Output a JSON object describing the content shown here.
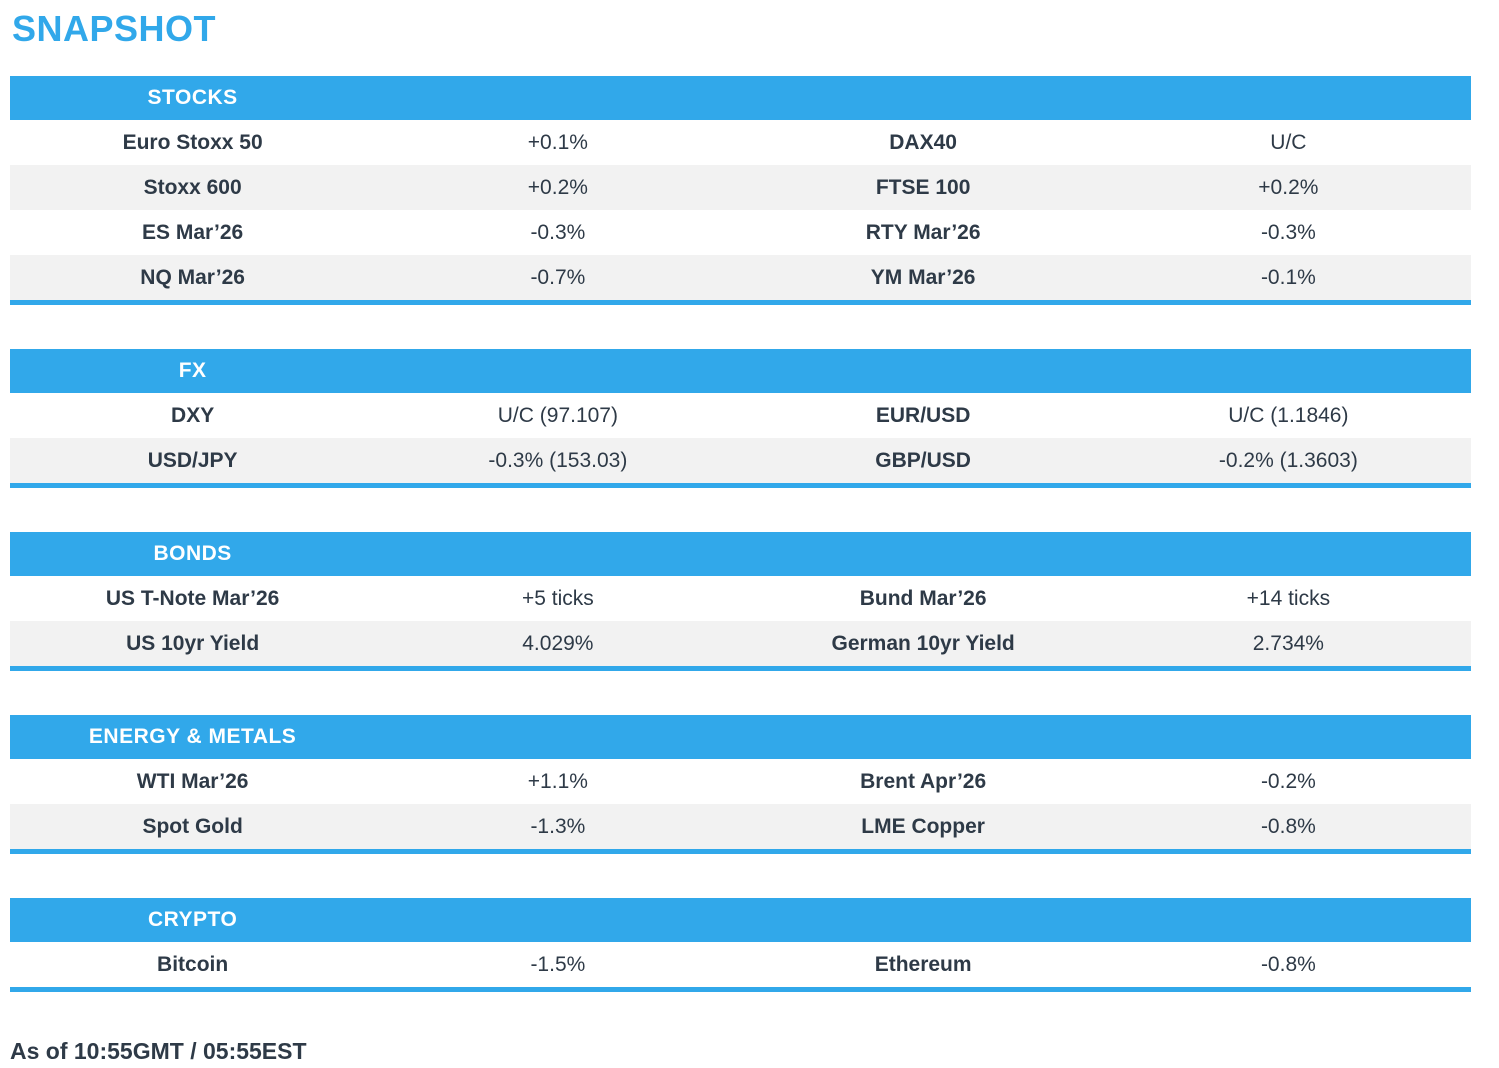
{
  "page": {
    "title": "SNAPSHOT",
    "footer": "As of 10:55GMT / 05:55EST"
  },
  "colors": {
    "accent_blue": "#31a8ea",
    "row_alt_gray": "#f2f2f2",
    "text_dark": "#2e3a47",
    "header_text": "#ffffff"
  },
  "sections": [
    {
      "title": "STOCKS",
      "rows": [
        [
          "Euro Stoxx 50",
          "+0.1%",
          "DAX40",
          "U/C"
        ],
        [
          "Stoxx 600",
          "+0.2%",
          "FTSE 100",
          "+0.2%"
        ],
        [
          "ES Mar’26",
          "-0.3%",
          "RTY Mar’26",
          "-0.3%"
        ],
        [
          "NQ Mar’26",
          "-0.7%",
          "YM Mar’26",
          "-0.1%"
        ]
      ]
    },
    {
      "title": "FX",
      "rows": [
        [
          "DXY",
          "U/C (97.107)",
          "EUR/USD",
          "U/C (1.1846)"
        ],
        [
          "USD/JPY",
          "-0.3% (153.03)",
          "GBP/USD",
          "-0.2% (1.3603)"
        ]
      ]
    },
    {
      "title": "BONDS",
      "rows": [
        [
          "US T-Note Mar’26",
          "+5 ticks",
          "Bund Mar’26",
          "+14 ticks"
        ],
        [
          "US 10yr Yield",
          "4.029%",
          "German 10yr Yield",
          "2.734%"
        ]
      ]
    },
    {
      "title": "ENERGY & METALS",
      "rows": [
        [
          "WTI Mar’26",
          "+1.1%",
          "Brent Apr’26",
          "-0.2%"
        ],
        [
          "Spot Gold",
          "-1.3%",
          "LME Copper",
          "-0.8%"
        ]
      ]
    },
    {
      "title": "CRYPTO",
      "rows": [
        [
          "Bitcoin",
          "-1.5%",
          "Ethereum",
          "-0.8%"
        ]
      ]
    }
  ]
}
